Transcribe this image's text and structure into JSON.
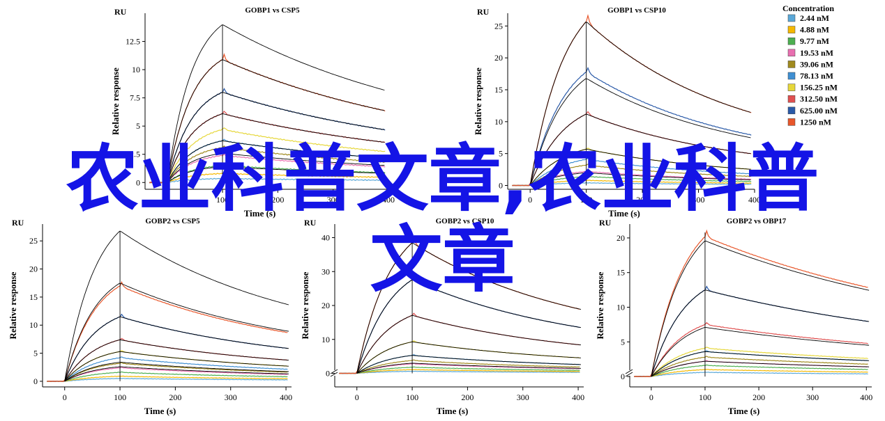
{
  "legend": {
    "title": "Concentration",
    "items": [
      {
        "label": "2.44 nM",
        "color": "#5aa8d8"
      },
      {
        "label": "4.88 nM",
        "color": "#f5b800"
      },
      {
        "label": "9.77 nM",
        "color": "#4caf50"
      },
      {
        "label": "19.53 nM",
        "color": "#e86fb0"
      },
      {
        "label": "39.06 nM",
        "color": "#a08a1e"
      },
      {
        "label": "78.13 nM",
        "color": "#3f8fd2"
      },
      {
        "label": "156.25 nM",
        "color": "#e6d73a"
      },
      {
        "label": "312.50 nM",
        "color": "#e05050"
      },
      {
        "label": "625.00 nM",
        "color": "#2a5aa8"
      },
      {
        "label": "1250 nM",
        "color": "#e8562a"
      }
    ]
  },
  "overlay": {
    "line1": "农业科普文章,农业科普",
    "line2": "文章"
  },
  "chart_data": [
    {
      "type": "line",
      "title": "GOBP1 vs CSP5",
      "ylabel": "Relative response",
      "xlabel": "Time (s)",
      "unit": "RU",
      "xlim": [
        -40,
        400
      ],
      "ylim": [
        -0.6,
        15
      ],
      "xticks": [
        0,
        100,
        200,
        300,
        400
      ],
      "yticks": [
        0,
        2.5,
        5,
        7.5,
        10,
        12.5
      ],
      "ytick_labels": [
        "0",
        "2.5",
        "5",
        "7.5",
        "10",
        "12.5"
      ],
      "axis_break": false,
      "kinetics": {
        "tau_assoc": 45,
        "tau_dissoc": 400,
        "resid": 0.2,
        "drift": 0.04
      },
      "peaks": [
        0.35,
        0.8,
        1.5,
        2.4,
        3.1,
        3.7,
        4.7,
        6.1,
        8.0,
        10.9
      ],
      "fit_peaks": [
        1.4,
        2.6,
        3.7,
        6.1,
        8.0,
        10.9,
        14.0
      ],
      "raw_overshoot_top": 14.0
    },
    {
      "type": "line",
      "title": "GOBP1 vs CSP10",
      "ylabel": "Relative response",
      "xlabel": "Time (s)",
      "unit": "RU",
      "xlim": [
        -40,
        400
      ],
      "ylim": [
        -0.6,
        27
      ],
      "xticks": [
        0,
        100,
        200,
        300,
        400
      ],
      "yticks": [
        0,
        5,
        10,
        15,
        20,
        25
      ],
      "ytick_labels": [
        "0",
        "5",
        "10",
        "15",
        "20",
        "25"
      ],
      "axis_break": false,
      "kinetics": {
        "tau_assoc": 60,
        "tau_dissoc": 260,
        "resid": 0.18,
        "drift": 0.04
      },
      "peaks": [
        0.4,
        0.8,
        1.4,
        2.2,
        3.2,
        4.1,
        5.7,
        11.2,
        17.8,
        25.7
      ],
      "fit_peaks": [
        2.0,
        5.7,
        11.2,
        16.8,
        25.7
      ],
      "raw_overshoot_top": 25.7
    },
    {
      "type": "line",
      "title": "GOBP2 vs CSP5",
      "ylabel": "Relative response",
      "xlabel": "Time (s)",
      "unit": "RU",
      "xlim": [
        -40,
        410
      ],
      "ylim": [
        -1,
        28
      ],
      "xticks": [
        0,
        100,
        200,
        300,
        400
      ],
      "yticks": [
        0,
        5,
        10,
        15,
        20,
        25
      ],
      "ytick_labels": [
        "0",
        "5",
        "10",
        "15",
        "20",
        "25"
      ],
      "axis_break": false,
      "kinetics": {
        "tau_assoc": 55,
        "tau_dissoc": 320,
        "resid": 0.2,
        "drift": 0.04
      },
      "peaks": [
        0.5,
        0.9,
        1.6,
        2.4,
        3.2,
        4.2,
        5.3,
        7.4,
        11.5,
        17.0
      ],
      "fit_peaks": [
        2.6,
        3.4,
        5.3,
        7.4,
        11.5,
        17.5,
        26.8
      ],
      "raw_overshoot_top": 26.8
    },
    {
      "type": "line",
      "title": "GOBP2 vs CSP10",
      "ylabel": "Relative response",
      "xlabel": "Time (s)",
      "unit": "RU",
      "xlim": [
        -40,
        410
      ],
      "ylim": [
        -4,
        44
      ],
      "xticks": [
        0,
        100,
        200,
        300,
        400
      ],
      "yticks": [
        0,
        10,
        20,
        30,
        40
      ],
      "ytick_labels": [
        "0",
        "10",
        "20",
        "30",
        "40"
      ],
      "axis_break": true,
      "kinetics": {
        "tau_assoc": 60,
        "tau_dissoc": 300,
        "resid": 0.2,
        "drift": 0.05
      },
      "peaks": [
        0.6,
        1.1,
        1.8,
        2.8,
        3.8,
        5.3,
        9.3,
        17.1,
        27.6,
        38.5
      ],
      "fit_peaks": [
        3.0,
        5.3,
        9.3,
        17.1,
        27.6,
        38.5
      ],
      "raw_overshoot_top": 38.5
    },
    {
      "type": "line",
      "title": "GOBP2 vs OBP17",
      "ylabel": "Relative response",
      "xlabel": "Time (s)",
      "unit": "RU",
      "xlim": [
        -40,
        410
      ],
      "ylim": [
        -1.5,
        22
      ],
      "xticks": [
        0,
        100,
        200,
        300,
        400
      ],
      "yticks": [
        0,
        5,
        10,
        15,
        20
      ],
      "ytick_labels": [
        "0",
        "5",
        "10",
        "15",
        "20"
      ],
      "axis_break": true,
      "kinetics": {
        "tau_assoc": 60,
        "tau_dissoc": 500,
        "resid": 0.2,
        "drift": 0.03
      },
      "peaks": [
        0.6,
        1.0,
        1.6,
        2.2,
        2.8,
        3.6,
        4.1,
        7.5,
        12.5,
        20.2
      ],
      "fit_peaks": [
        2.2,
        3.6,
        7.1,
        12.5,
        19.6
      ],
      "raw_overshoot_top": 20.8
    }
  ]
}
